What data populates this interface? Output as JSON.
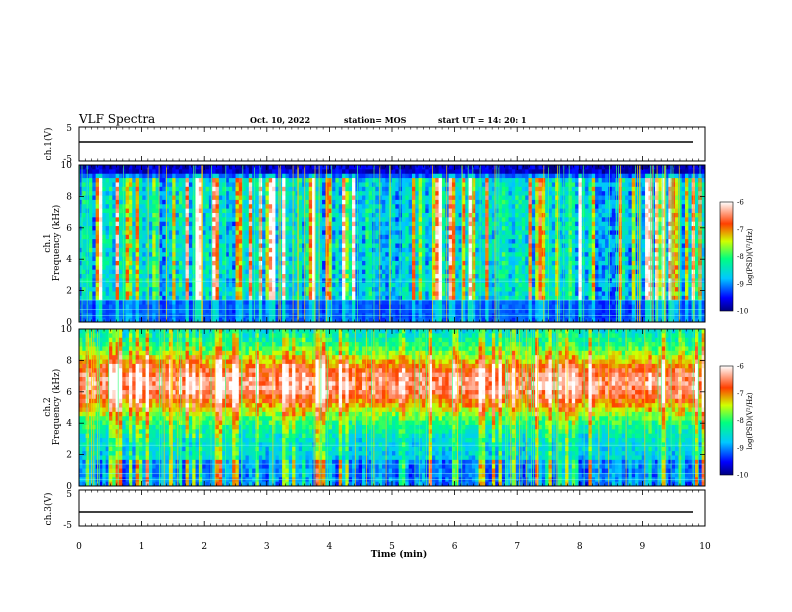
{
  "header": {
    "title": "VLF Spectra",
    "date": "Oct. 10, 2022",
    "station": "station= MOS",
    "start": "start  UT =   14: 20: 1"
  },
  "chart_data": [
    {
      "type": "line",
      "name": "ch1-waveform-panel",
      "ylabel": "ch.1(V)",
      "ylim": [
        -5,
        5
      ],
      "yticks": [
        "5",
        "-5"
      ],
      "x": [
        0,
        10
      ],
      "y": [
        -2,
        -2
      ]
    },
    {
      "type": "heatmap",
      "name": "ch1-spectrogram",
      "ylabel": "ch.1\nFrequency (kHz)",
      "ylim": [
        0,
        10
      ],
      "yticks": [
        "0",
        "2",
        "4",
        "6",
        "8",
        "10"
      ],
      "xlim": [
        0,
        10
      ],
      "colorbar": {
        "label": "log(PSD)(V²/Hz)",
        "range": [
          -10,
          -6
        ],
        "ticks": [
          "-6",
          "-7",
          "-8",
          "-9",
          "-10"
        ]
      },
      "dominant_band_khz": [
        1.5,
        10
      ],
      "background_level": -9.5,
      "burst_level": -7
    },
    {
      "type": "heatmap",
      "name": "ch2-spectrogram",
      "ylabel": "ch.2\nFrequency (kHz)",
      "ylim": [
        0,
        10
      ],
      "yticks": [
        "0",
        "2",
        "4",
        "6",
        "8",
        "10"
      ],
      "xlim": [
        0,
        10
      ],
      "colorbar": {
        "label": "log(PSD)(V²/Hz)",
        "range": [
          -10,
          -6
        ],
        "ticks": [
          "-6",
          "-7",
          "-8",
          "-9",
          "-10"
        ]
      },
      "dominant_band_khz": [
        5,
        8
      ],
      "peak_level": -6.8,
      "background_level": -9.2
    },
    {
      "type": "line",
      "name": "ch3-waveform-panel",
      "ylabel": "ch.3(V)",
      "ylim": [
        -5,
        5
      ],
      "yticks": [
        "5",
        "-5"
      ],
      "x": [
        0,
        10
      ],
      "y": [
        -2,
        -2
      ]
    }
  ],
  "x_axis": {
    "label": "Time (min)",
    "ticks": [
      "0",
      "1",
      "2",
      "3",
      "4",
      "5",
      "6",
      "7",
      "8",
      "9",
      "10"
    ],
    "range": [
      0,
      10
    ]
  }
}
